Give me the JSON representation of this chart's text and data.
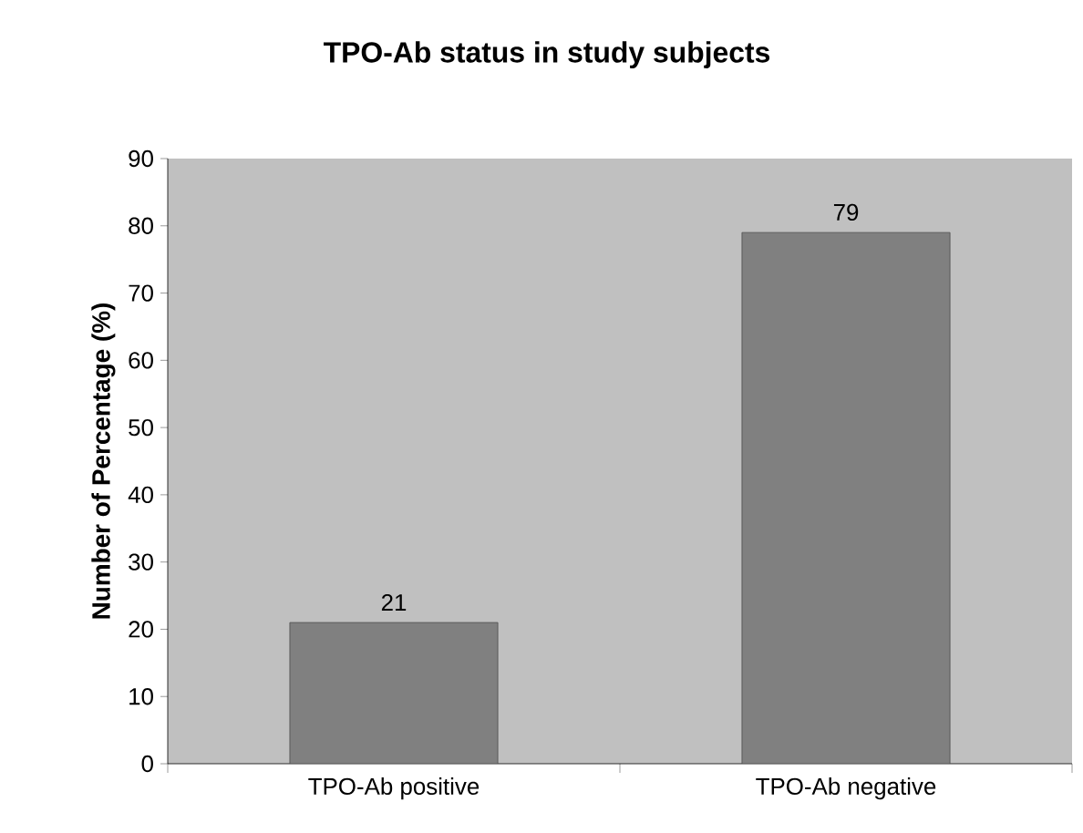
{
  "chart_data": {
    "type": "bar",
    "title": "TPO-Ab status in study subjects",
    "ylabel": "Number of Percentage (%)",
    "categories": [
      "TPO-Ab positive",
      "TPO-Ab negative"
    ],
    "values": [
      21,
      79
    ],
    "color": "#808080",
    "ylim": [
      0,
      90
    ],
    "yticks": [
      0,
      10,
      20,
      30,
      40,
      50,
      60,
      70,
      80,
      90
    ],
    "data_labels": true
  }
}
